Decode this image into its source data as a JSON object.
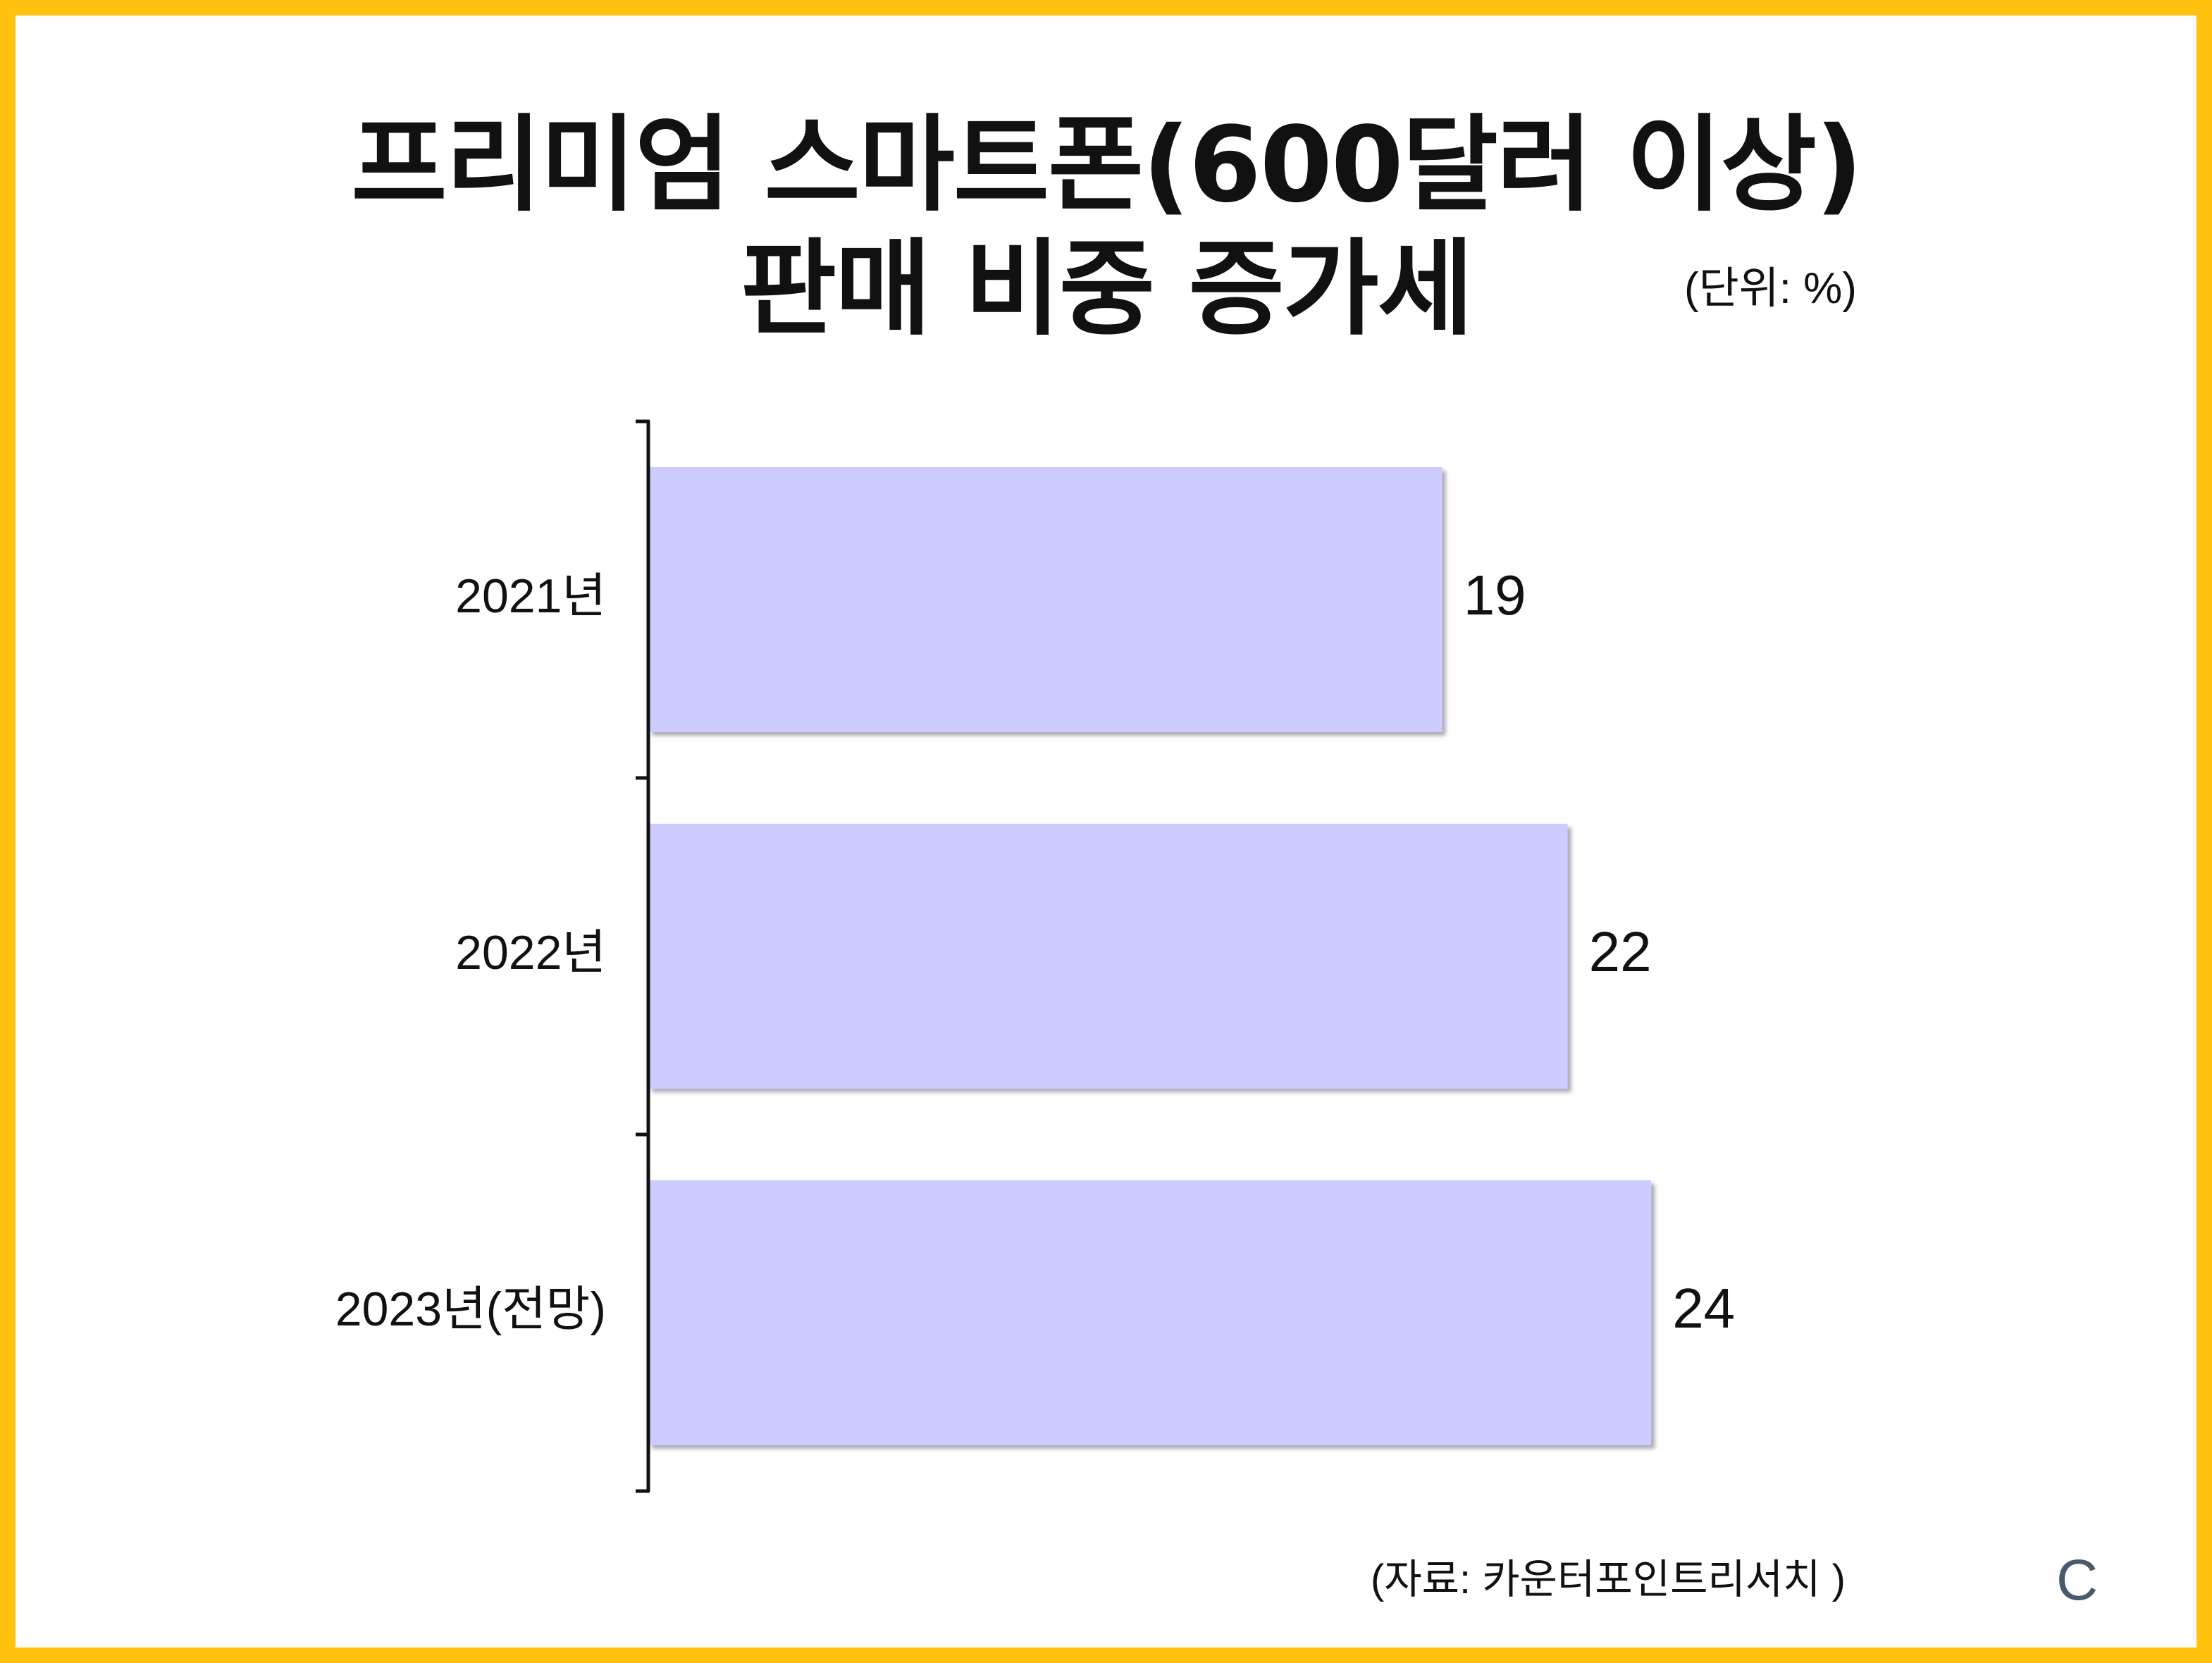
{
  "title": {
    "line1": "프리미엄 스마트폰(600달러 이상)",
    "line2": "판매 비중 증가세"
  },
  "unit_note": "(단위: %)",
  "source_note": "(자료: 카운터포인트리서치 )",
  "corner_mark": "C",
  "colors": {
    "frame": "#FFC20E",
    "bar": "#CCCCFF",
    "bar_shadow": "#9A9AAA",
    "axis": "#111111",
    "text": "#111111"
  },
  "chart_data": {
    "type": "bar",
    "orientation": "horizontal",
    "categories": [
      "2021년",
      "2022년",
      "2023년(전망)"
    ],
    "values": [
      19,
      22,
      24
    ],
    "data_labels": [
      "19",
      "22",
      "24"
    ],
    "xlim": [
      0,
      26
    ],
    "grid": false,
    "legend": "none"
  }
}
